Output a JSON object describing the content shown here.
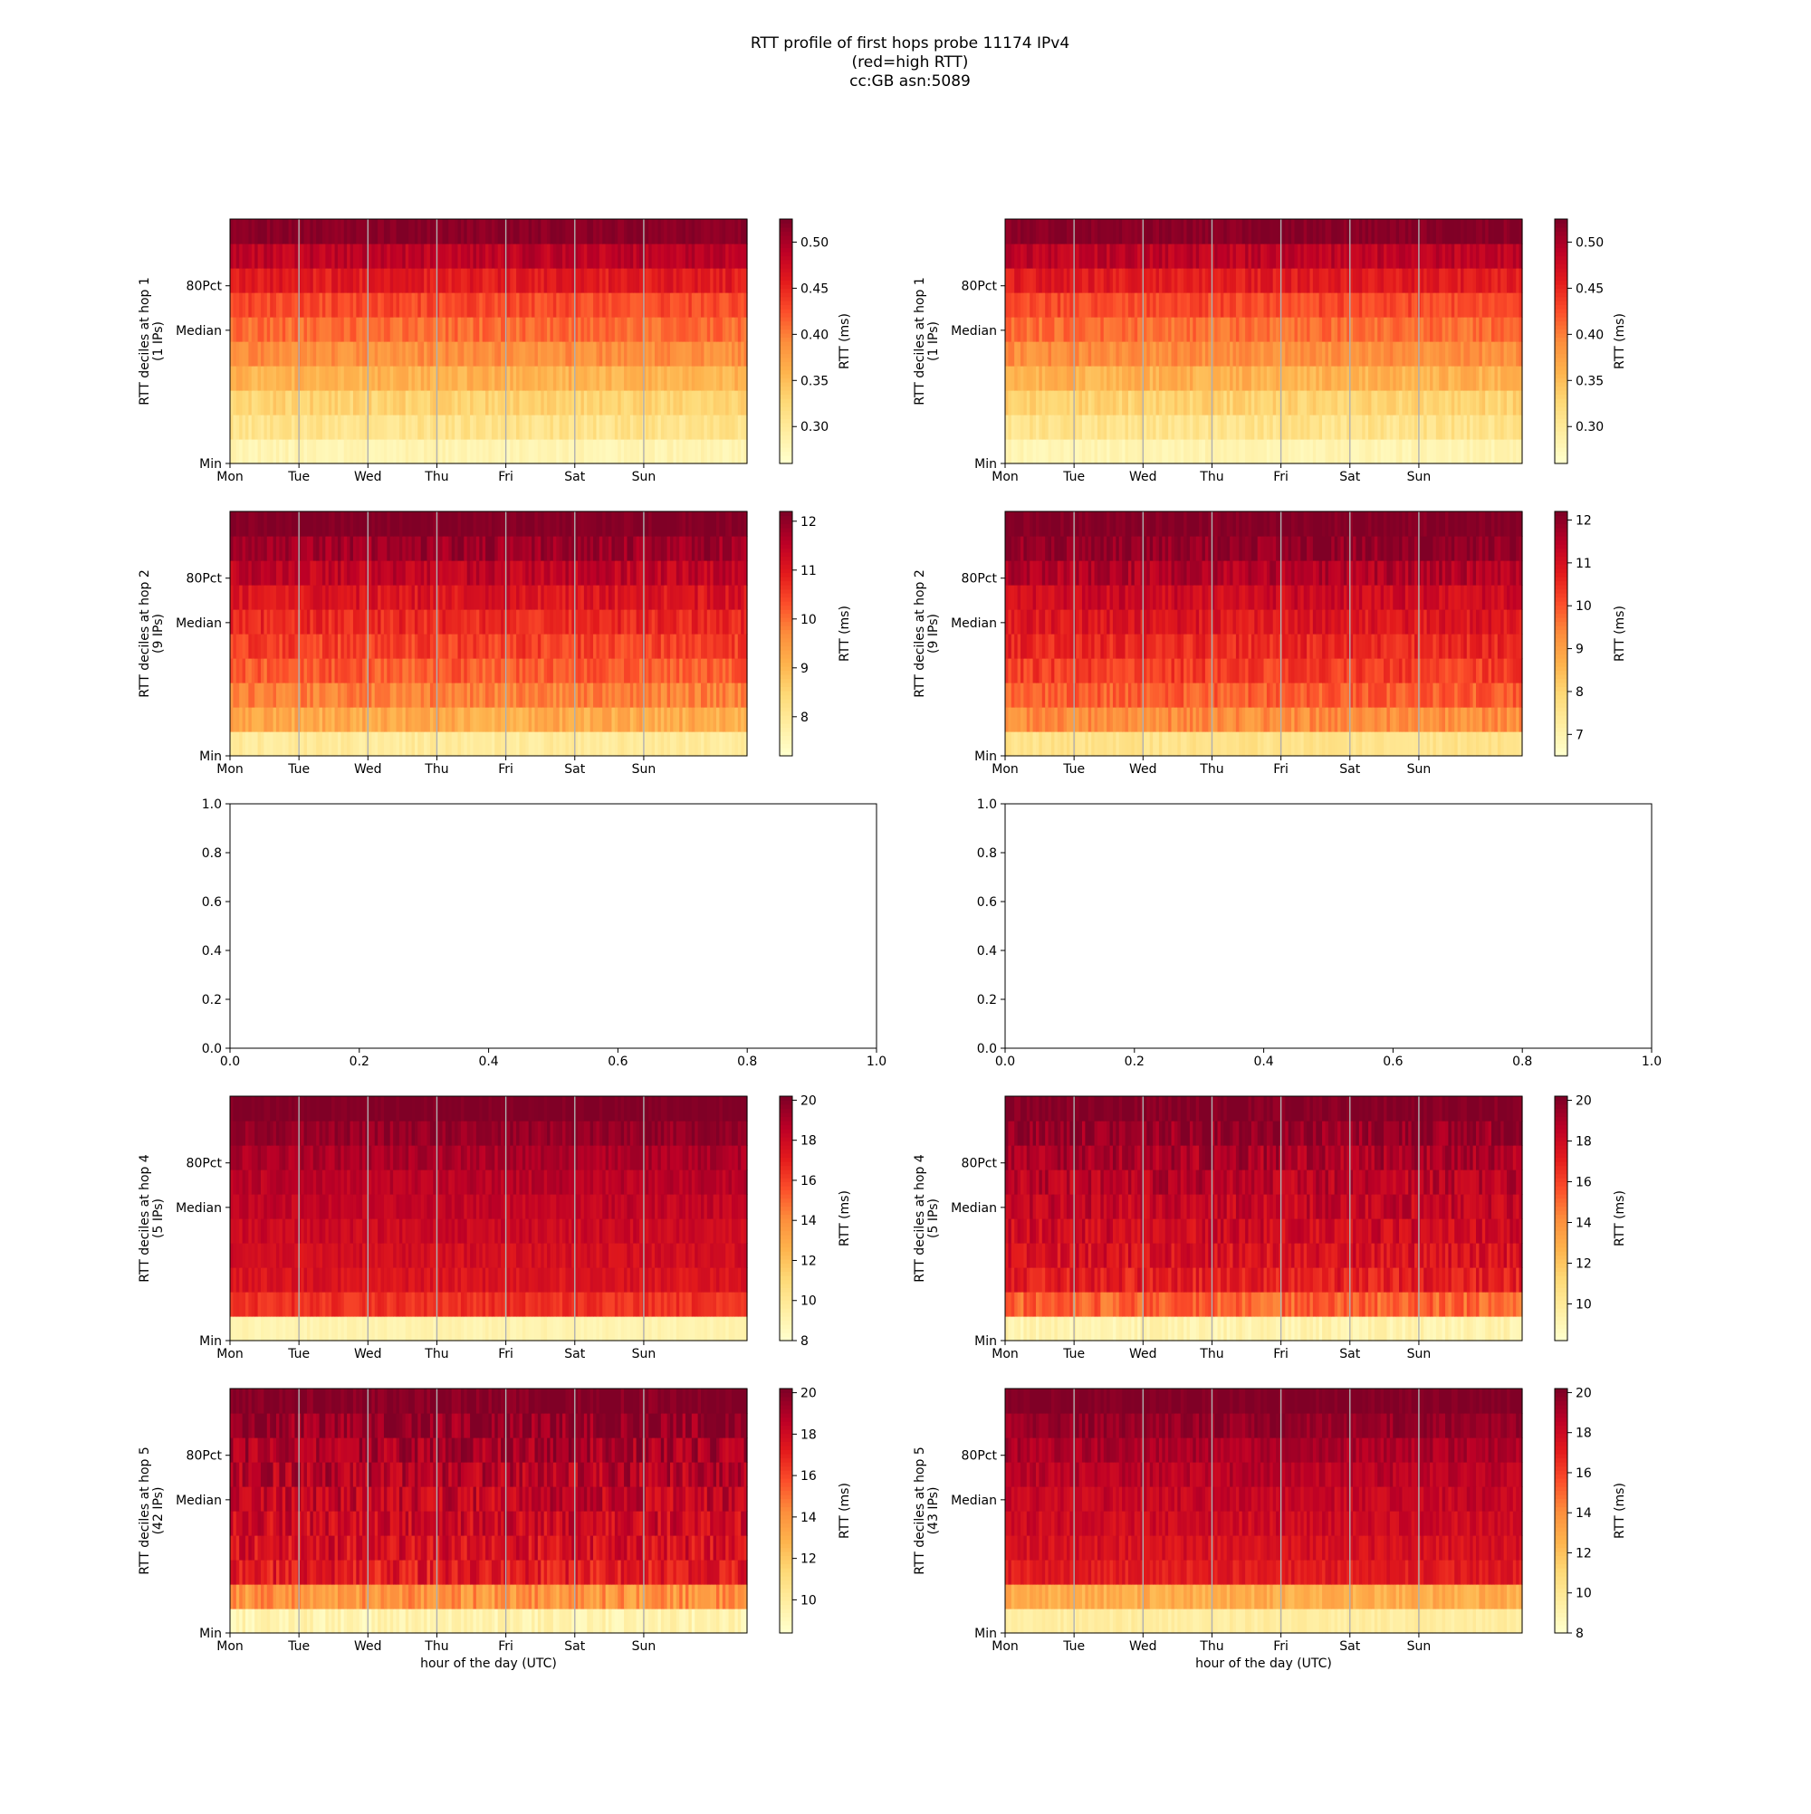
{
  "figure": {
    "title_lines": [
      "RTT profile of first hops probe 11174 IPv4",
      "(red=high RTT)",
      "cc:GB asn:5089"
    ]
  },
  "colors": {
    "background": "#ffffff",
    "axes": "#000000",
    "day_separator": "#b0b0b0",
    "colormap_YlOrRd": [
      "#ffffcc",
      "#ffeda0",
      "#fed976",
      "#feb24c",
      "#fd8d3c",
      "#fc4e2a",
      "#e31a1c",
      "#bd0026",
      "#800026"
    ]
  },
  "chart_data": [
    {
      "type": "heatmap",
      "panel": "row1-left",
      "ylabel": [
        "RTT deciles at hop 1",
        "(1 IPs)"
      ],
      "xticks": [
        "Mon",
        "Tue",
        "Wed",
        "Thu",
        "Fri",
        "Sat",
        "Sun"
      ],
      "yticks": [
        "Min",
        "Median",
        "80Pct"
      ],
      "xlabel": "",
      "colorbar": {
        "label": "RTT (ms)",
        "ticks": [
          "0.30",
          "0.35",
          "0.40",
          "0.45",
          "0.50"
        ],
        "tick_values": [
          0.3,
          0.35,
          0.4,
          0.45,
          0.5
        ],
        "range": [
          0.26,
          0.525
        ]
      },
      "decile_means": [
        0.28,
        0.31,
        0.33,
        0.36,
        0.39,
        0.41,
        0.43,
        0.46,
        0.49,
        0.52
      ],
      "noise": 0.015,
      "seed": 11
    },
    {
      "type": "heatmap",
      "panel": "row1-right",
      "ylabel": [
        "RTT deciles at hop 1",
        "(1 IPs)"
      ],
      "xticks": [
        "Mon",
        "Tue",
        "Wed",
        "Thu",
        "Fri",
        "Sat",
        "Sun"
      ],
      "yticks": [
        "Min",
        "Median",
        "80Pct"
      ],
      "xlabel": "",
      "colorbar": {
        "label": "RTT (ms)",
        "ticks": [
          "0.30",
          "0.35",
          "0.40",
          "0.45",
          "0.50"
        ],
        "tick_values": [
          0.3,
          0.35,
          0.4,
          0.45,
          0.5
        ],
        "range": [
          0.26,
          0.525
        ]
      },
      "decile_means": [
        0.28,
        0.31,
        0.33,
        0.36,
        0.39,
        0.41,
        0.43,
        0.46,
        0.49,
        0.52
      ],
      "noise": 0.015,
      "seed": 12
    },
    {
      "type": "heatmap",
      "panel": "row2-left",
      "ylabel": [
        "RTT deciles at hop 2",
        "(9 IPs)"
      ],
      "xticks": [
        "Mon",
        "Tue",
        "Wed",
        "Thu",
        "Fri",
        "Sat",
        "Sun"
      ],
      "yticks": [
        "Min",
        "Median",
        "80Pct"
      ],
      "xlabel": "",
      "colorbar": {
        "label": "RTT (ms)",
        "ticks": [
          "8",
          "9",
          "10",
          "11",
          "12"
        ],
        "tick_values": [
          8,
          9,
          10,
          11,
          12
        ],
        "range": [
          7.2,
          12.2
        ]
      },
      "decile_means": [
        7.9,
        9.2,
        9.8,
        10.2,
        10.5,
        10.8,
        11.1,
        11.5,
        11.9,
        12.2
      ],
      "noise": 0.35,
      "seed": 21
    },
    {
      "type": "heatmap",
      "panel": "row2-right",
      "ylabel": [
        "RTT deciles at hop 2",
        "(9 IPs)"
      ],
      "xticks": [
        "Mon",
        "Tue",
        "Wed",
        "Thu",
        "Fri",
        "Sat",
        "Sun"
      ],
      "yticks": [
        "Min",
        "Median",
        "80Pct"
      ],
      "xlabel": "",
      "colorbar": {
        "label": "RTT (ms)",
        "ticks": [
          "7",
          "8",
          "9",
          "10",
          "11",
          "12"
        ],
        "tick_values": [
          7,
          8,
          9,
          10,
          11,
          12
        ],
        "range": [
          6.5,
          12.2
        ]
      },
      "decile_means": [
        7.6,
        9.3,
        9.9,
        10.3,
        10.6,
        10.9,
        11.2,
        11.6,
        12.0,
        12.2
      ],
      "noise": 0.4,
      "seed": 22
    },
    {
      "type": "empty",
      "panel": "row3-left",
      "xticks": [
        "0.0",
        "0.2",
        "0.4",
        "0.6",
        "0.8",
        "1.0"
      ],
      "yticks": [
        "0.0",
        "0.2",
        "0.4",
        "0.6",
        "0.8",
        "1.0"
      ],
      "xlim": [
        0,
        1
      ],
      "ylim": [
        0,
        1
      ]
    },
    {
      "type": "empty",
      "panel": "row3-right",
      "xticks": [
        "0.0",
        "0.2",
        "0.4",
        "0.6",
        "0.8",
        "1.0"
      ],
      "yticks": [
        "0.0",
        "0.2",
        "0.4",
        "0.6",
        "0.8",
        "1.0"
      ],
      "xlim": [
        0,
        1
      ],
      "ylim": [
        0,
        1
      ]
    },
    {
      "type": "heatmap",
      "panel": "row4-left",
      "ylabel": [
        "RTT deciles at hop 4",
        "(5 IPs)"
      ],
      "xticks": [
        "Mon",
        "Tue",
        "Wed",
        "Thu",
        "Fri",
        "Sat",
        "Sun"
      ],
      "yticks": [
        "Min",
        "Median",
        "80Pct"
      ],
      "xlabel": "",
      "colorbar": {
        "label": "RTT (ms)",
        "ticks": [
          "8",
          "10",
          "12",
          "14",
          "16",
          "18",
          "20"
        ],
        "tick_values": [
          8,
          10,
          12,
          14,
          16,
          18,
          20
        ],
        "range": [
          8,
          20.2
        ]
      },
      "decile_means": [
        9.0,
        16.5,
        17.5,
        17.8,
        18.1,
        18.4,
        18.7,
        19.1,
        19.6,
        20.2
      ],
      "noise": 0.6,
      "seed": 41
    },
    {
      "type": "heatmap",
      "panel": "row4-right",
      "ylabel": [
        "RTT deciles at hop 4",
        "(5 IPs)"
      ],
      "xticks": [
        "Mon",
        "Tue",
        "Wed",
        "Thu",
        "Fri",
        "Sat",
        "Sun"
      ],
      "yticks": [
        "Min",
        "Median",
        "80Pct"
      ],
      "xlabel": "",
      "colorbar": {
        "label": "RTT (ms)",
        "ticks": [
          "10",
          "12",
          "14",
          "16",
          "18",
          "20"
        ],
        "tick_values": [
          10,
          12,
          14,
          16,
          18,
          20
        ],
        "range": [
          8.2,
          20.2
        ]
      },
      "decile_means": [
        9.2,
        15.2,
        17.2,
        17.7,
        18.0,
        18.3,
        18.7,
        19.1,
        19.6,
        20.2
      ],
      "noise": 1.0,
      "seed": 42
    },
    {
      "type": "heatmap",
      "panel": "row5-left",
      "ylabel": [
        "RTT deciles at hop 5",
        "(42 IPs)"
      ],
      "xticks": [
        "Mon",
        "Tue",
        "Wed",
        "Thu",
        "Fri",
        "Sat",
        "Sun"
      ],
      "yticks": [
        "Min",
        "Median",
        "80Pct"
      ],
      "xlabel": "hour of the day (UTC)",
      "colorbar": {
        "label": "RTT (ms)",
        "ticks": [
          "10",
          "12",
          "14",
          "16",
          "18",
          "20"
        ],
        "tick_values": [
          10,
          12,
          14,
          16,
          18,
          20
        ],
        "range": [
          8.4,
          20.2
        ]
      },
      "decile_means": [
        9.3,
        14.0,
        17.3,
        17.8,
        18.1,
        18.4,
        18.8,
        19.2,
        19.7,
        20.2
      ],
      "noise": 1.2,
      "seed": 51
    },
    {
      "type": "heatmap",
      "panel": "row5-right",
      "ylabel": [
        "RTT deciles at hop 5",
        "(43 IPs)"
      ],
      "xticks": [
        "Mon",
        "Tue",
        "Wed",
        "Thu",
        "Fri",
        "Sat",
        "Sun"
      ],
      "yticks": [
        "Min",
        "Median",
        "80Pct"
      ],
      "xlabel": "hour of the day (UTC)",
      "colorbar": {
        "label": "RTT (ms)",
        "ticks": [
          "8",
          "10",
          "12",
          "14",
          "16",
          "18",
          "20"
        ],
        "tick_values": [
          8,
          10,
          12,
          14,
          16,
          18,
          20
        ],
        "range": [
          8,
          20.2
        ]
      },
      "decile_means": [
        9.5,
        12.8,
        17.2,
        17.7,
        18.0,
        18.3,
        18.7,
        19.1,
        19.6,
        20.2
      ],
      "noise": 0.7,
      "seed": 52
    }
  ]
}
